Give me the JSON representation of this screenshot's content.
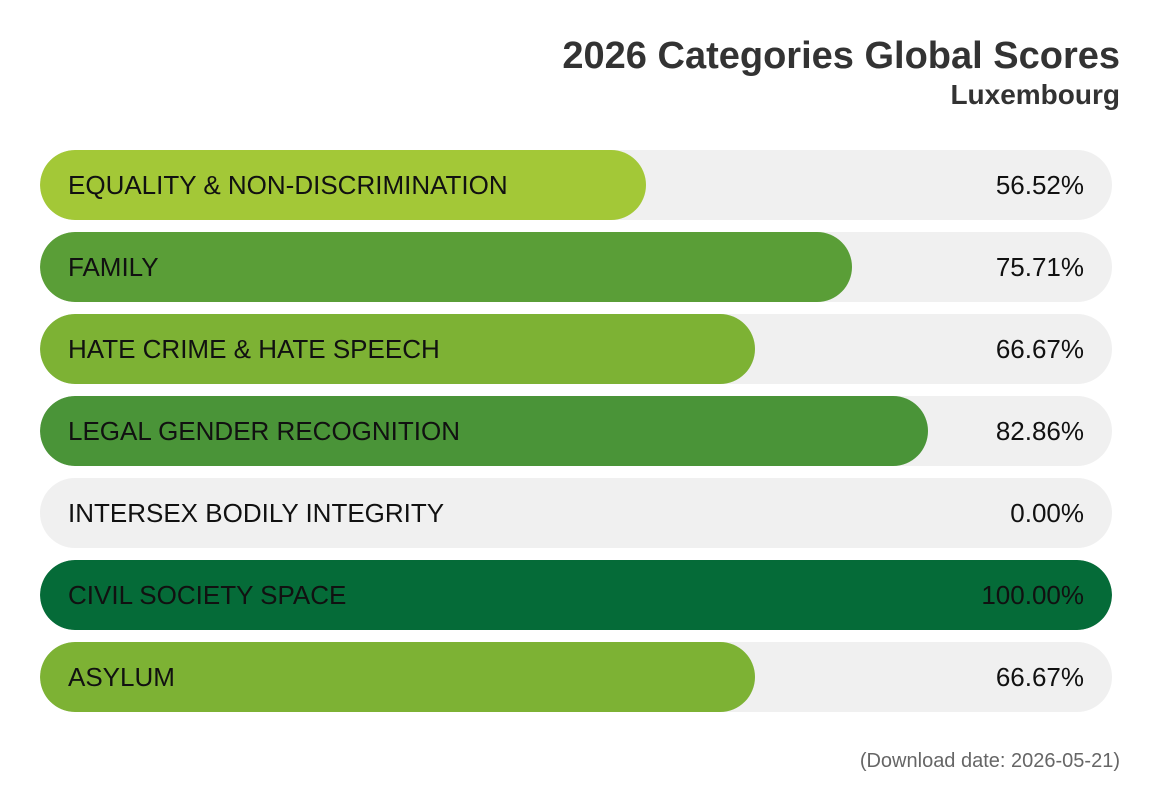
{
  "chart_data": {
    "type": "bar",
    "orientation": "horizontal",
    "title": "2026 Categories Global Scores",
    "subtitle": "Luxembourg",
    "xlim": [
      0,
      100
    ],
    "categories": [
      "EQUALITY & NON-DISCRIMINATION",
      "FAMILY",
      "HATE CRIME & HATE SPEECH",
      "LEGAL GENDER RECOGNITION",
      "INTERSEX BODILY INTEGRITY",
      "CIVIL SOCIETY SPACE",
      "ASYLUM"
    ],
    "values": [
      56.52,
      75.71,
      66.67,
      82.86,
      0.0,
      100.0,
      66.67
    ],
    "value_labels": [
      "56.52%",
      "75.71%",
      "66.67%",
      "82.86%",
      "0.00%",
      "100.00%",
      "66.67%"
    ],
    "colors": [
      "#a3c837",
      "#5a9e37",
      "#7db234",
      "#4a9438",
      "#f0f0f0",
      "#056b38",
      "#7db234"
    ],
    "track_color": "#f0f0f0",
    "footer": "(Download date: 2026-05-21)"
  }
}
